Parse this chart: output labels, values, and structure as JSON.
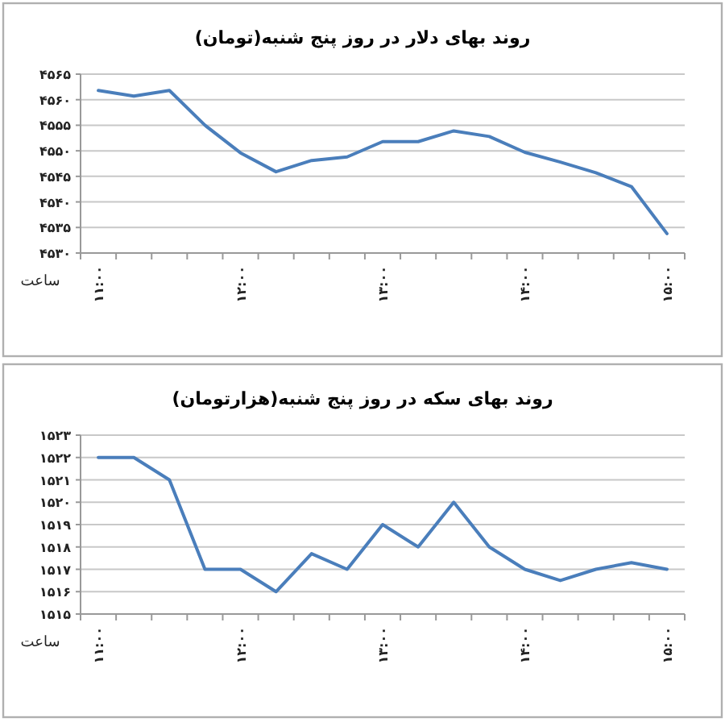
{
  "chart_data": [
    {
      "type": "line",
      "title": "روند بهای دلار در روز پنج شنبه(تومان)",
      "xlabel": "ساعت",
      "categories": [
        "۱۱:۰۰",
        null,
        null,
        null,
        "۱۲:۰۰",
        null,
        null,
        null,
        "۱۳:۰۰",
        null,
        null,
        null,
        "۱۴:۰۰",
        null,
        null,
        null,
        "۱۵:۰۰"
      ],
      "series": [
        {
          "color": "#4a7ebb",
          "values": [
            4561.8,
            4560.7,
            4561.8,
            4555,
            4549.6,
            4545.9,
            4548.1,
            4548.8,
            4551.8,
            4551.8,
            4553.9,
            4552.8,
            4549.7,
            4547.8,
            4545.7,
            4543,
            4533.8
          ]
        }
      ],
      "ylim": [
        4530,
        4565
      ],
      "yticks": [
        {
          "value": 4530,
          "label": "۴۵۳۰"
        },
        {
          "value": 4535,
          "label": "۴۵۳۵"
        },
        {
          "value": 4540,
          "label": "۴۵۴۰"
        },
        {
          "value": 4545,
          "label": "۴۵۴۵"
        },
        {
          "value": 4550,
          "label": "۴۵۵۰"
        },
        {
          "value": 4555,
          "label": "۴۵۵۵"
        },
        {
          "value": 4560,
          "label": "۴۵۶۰"
        },
        {
          "value": 4565,
          "label": "۴۵۶۵"
        }
      ],
      "grid": "y",
      "marker": "none",
      "line_style": "solid"
    },
    {
      "type": "line",
      "title": "روند بهای سکه در روز پنج شنبه(هزارتومان)",
      "xlabel": "ساعت",
      "categories": [
        "۱۱:۰۰",
        null,
        null,
        null,
        "۱۲:۰۰",
        null,
        null,
        null,
        "۱۳:۰۰",
        null,
        null,
        null,
        "۱۴:۰۰",
        null,
        null,
        null,
        "۱۵:۰۰"
      ],
      "series": [
        {
          "color": "#4a7ebb",
          "values": [
            1522,
            1522,
            1521,
            1517,
            1517,
            1516,
            1517.7,
            1517,
            1519,
            1518,
            1520,
            1518,
            1517,
            1516.5,
            1517,
            1517.3,
            1517
          ]
        }
      ],
      "ylim": [
        1515,
        1523
      ],
      "yticks": [
        {
          "value": 1515,
          "label": "۱۵۱۵"
        },
        {
          "value": 1516,
          "label": "۱۵۱۶"
        },
        {
          "value": 1517,
          "label": "۱۵۱۷"
        },
        {
          "value": 1518,
          "label": "۱۵۱۸"
        },
        {
          "value": 1519,
          "label": "۱۵۱۹"
        },
        {
          "value": 1520,
          "label": "۱۵۲۰"
        },
        {
          "value": 1521,
          "label": "۱۵۲۱"
        },
        {
          "value": 1522,
          "label": "۱۵۲۲"
        },
        {
          "value": 1523,
          "label": "۱۵۲۳"
        }
      ],
      "grid": "y",
      "marker": "none",
      "line_style": "solid"
    }
  ]
}
